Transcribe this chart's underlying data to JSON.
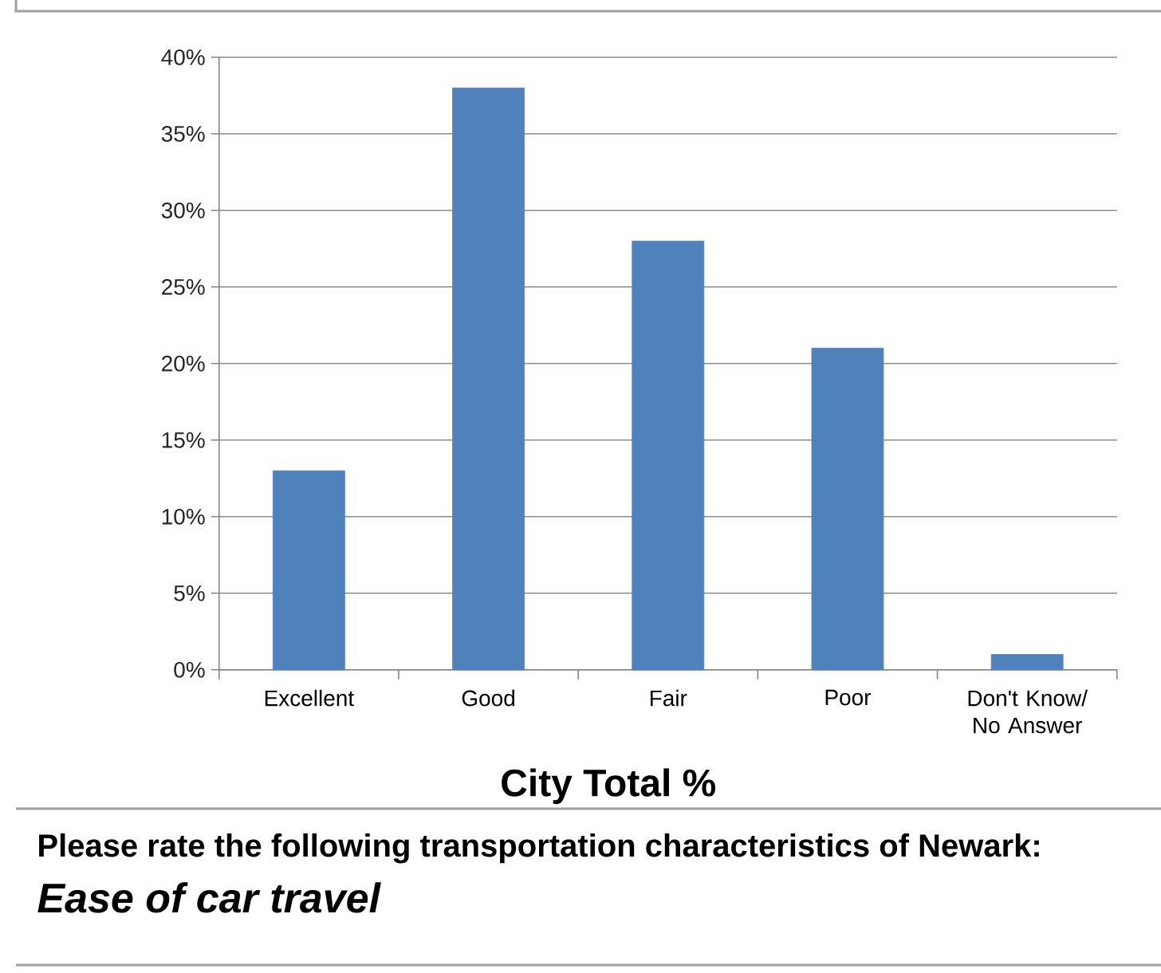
{
  "chart_data": {
    "type": "bar",
    "title": "Please rate the following transportation characteristics of Newark:",
    "subtitle": "Ease of car travel",
    "xlabel": "City Total %",
    "categories": [
      "Excellent",
      "Good",
      "Fair",
      "Poor",
      "Don't Know/ No Answer"
    ],
    "values": [
      13,
      38,
      28,
      21,
      1
    ],
    "color": "#4f81bd",
    "ylim": [
      0,
      40
    ],
    "yticks": [
      {
        "value": 0,
        "label": "0%"
      },
      {
        "value": 5,
        "label": "5%"
      },
      {
        "value": 10,
        "label": "10%"
      },
      {
        "value": 15,
        "label": "15%"
      },
      {
        "value": 20,
        "label": "20%"
      },
      {
        "value": 25,
        "label": "25%"
      },
      {
        "value": 30,
        "label": "30%"
      },
      {
        "value": 35,
        "label": "35%"
      },
      {
        "value": 40,
        "label": "40%"
      }
    ],
    "grid": "y"
  }
}
